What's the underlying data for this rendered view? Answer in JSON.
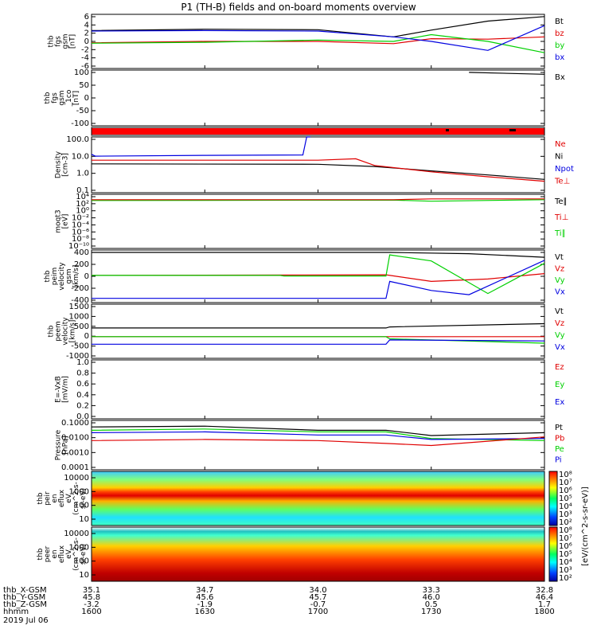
{
  "title": "P1 (TH-B) fields and on-board moments overview",
  "colors": {
    "black": "#000000",
    "red": "#e00000",
    "green": "#00d000",
    "blue": "#0000e0"
  },
  "chart_data": [
    {
      "id": "fgs",
      "type": "line",
      "ylabel_lines": [
        "thb",
        "fgs",
        "gsm",
        "[nT]"
      ],
      "yticks": [
        "6",
        "4",
        "2",
        "0",
        "-2",
        "-4",
        "-6"
      ],
      "ylim": [
        -6,
        6
      ],
      "legend": [
        {
          "label": "Bt",
          "color": "black"
        },
        {
          "label": "bz",
          "color": "red"
        },
        {
          "label": "by",
          "color": "green"
        },
        {
          "label": "bx",
          "color": "blue"
        }
      ],
      "series": [
        {
          "name": "Bt",
          "color": "black",
          "x": [
            1600,
            1630,
            1700,
            1720,
            1730,
            1745,
            1800
          ],
          "y": [
            2.4,
            2.7,
            2.6,
            1.0,
            2.5,
            4.5,
            5.5
          ]
        },
        {
          "name": "bz",
          "color": "red",
          "x": [
            1600,
            1630,
            1700,
            1720,
            1730,
            1745,
            1800
          ],
          "y": [
            -0.3,
            0.0,
            0.0,
            -0.5,
            0.6,
            0.5,
            1.0
          ]
        },
        {
          "name": "by",
          "color": "green",
          "x": [
            1600,
            1630,
            1700,
            1720,
            1730,
            1745,
            1800
          ],
          "y": [
            -0.4,
            -0.2,
            0.3,
            0.0,
            1.5,
            0.0,
            -2.5
          ]
        },
        {
          "name": "bx",
          "color": "blue",
          "x": [
            1600,
            1630,
            1700,
            1720,
            1730,
            1745,
            1800
          ],
          "y": [
            2.3,
            2.4,
            2.3,
            1.0,
            0.0,
            -2.0,
            3.5
          ]
        }
      ]
    },
    {
      "id": "fgs_bx",
      "type": "line",
      "ylabel_lines": [
        "thb",
        "fgs",
        "gsm",
        "_1co",
        "[nT]"
      ],
      "yticks": [
        "100",
        "50",
        "0",
        "-50",
        "-100"
      ],
      "ylim": [
        -130,
        110
      ],
      "legend": [
        {
          "label": "Bx",
          "color": "black"
        }
      ],
      "series": [
        {
          "name": "Bx",
          "color": "black",
          "x": [
            1740,
            1800
          ],
          "y": [
            100,
            92
          ]
        }
      ]
    },
    {
      "id": "flag",
      "type": "bar",
      "ylabel_lines": [],
      "yticks": [],
      "legend": []
    },
    {
      "id": "density",
      "type": "line",
      "log": true,
      "ylabel_lines": [
        "Density",
        "[cm-3]"
      ],
      "yticks": [
        "100.0",
        "10.0",
        "1.0",
        "0.1"
      ],
      "ylim": [
        0.05,
        300
      ],
      "legend": [
        {
          "label": "Ne",
          "color": "red"
        },
        {
          "label": "Ni",
          "color": "black"
        },
        {
          "label": "Npot",
          "color": "blue"
        },
        {
          "label": "Te⊥",
          "color": "red"
        }
      ],
      "series": [
        {
          "name": "Npot",
          "color": "blue",
          "x": [
            1600,
            1601,
            1630,
            1656,
            1657,
            1658
          ],
          "y": [
            20,
            15,
            17,
            18,
            300,
            300
          ]
        },
        {
          "name": "Ni",
          "color": "black",
          "x": [
            1600,
            1700,
            1715,
            1730,
            1745,
            1800
          ],
          "y": [
            4.5,
            4.2,
            3.0,
            1.5,
            0.8,
            0.4
          ]
        },
        {
          "name": "Ne",
          "color": "red",
          "x": [
            1600,
            1700,
            1710,
            1715,
            1730,
            1745,
            1800
          ],
          "y": [
            8,
            8,
            10,
            3.5,
            1.3,
            0.6,
            0.3
          ]
        }
      ]
    },
    {
      "id": "moqt3",
      "type": "line",
      "log": true,
      "ylabel_lines": [
        "moqt3",
        "[eV]"
      ],
      "yticks": [
        "10⁴",
        "10²",
        "10⁰",
        "10⁻²",
        "10⁻⁴",
        "10⁻⁶",
        "10⁻⁸",
        "10⁻¹⁰"
      ],
      "ylim": [
        -10,
        4
      ],
      "legend": [
        {
          "label": "Te∥",
          "color": "black"
        },
        {
          "label": "Ti⊥",
          "color": "red"
        },
        {
          "label": "Ti∥",
          "color": "green"
        }
      ],
      "series": [
        {
          "name": "Ti∥",
          "color": "green",
          "x": [
            1600,
            1720,
            1730,
            1800
          ],
          "y": [
            2.4,
            2.5,
            2.2,
            2.6
          ]
        },
        {
          "name": "Ti⊥",
          "color": "red",
          "x": [
            1600,
            1720,
            1730,
            1800
          ],
          "y": [
            2.6,
            2.6,
            2.8,
            2.8
          ]
        }
      ]
    },
    {
      "id": "peim",
      "type": "line",
      "ylabel_lines": [
        "thb",
        "peim",
        "velocity",
        "gsm",
        "[km/s]"
      ],
      "yticks": [
        "400",
        "200",
        "0",
        "-200",
        "-400"
      ],
      "ylim": [
        -450,
        420
      ],
      "legend": [
        {
          "label": "Vt",
          "color": "black"
        },
        {
          "label": "Vz",
          "color": "red"
        },
        {
          "label": "Vy",
          "color": "green"
        },
        {
          "label": "Vx",
          "color": "blue"
        }
      ],
      "series": [
        {
          "name": "Vt",
          "color": "black",
          "x": [
            1600,
            1700,
            1718,
            1719,
            1740,
            1800
          ],
          "y": [
            380,
            380,
            380,
            380,
            360,
            300
          ]
        },
        {
          "name": "Vz",
          "color": "red",
          "x": [
            1600,
            1718,
            1730,
            1745,
            1800
          ],
          "y": [
            0,
            10,
            -100,
            -60,
            30
          ]
        },
        {
          "name": "Vy",
          "color": "green",
          "x": [
            1600,
            1650,
            1651,
            1718,
            1719,
            1730,
            1745,
            1800
          ],
          "y": [
            0,
            0,
            -10,
            -10,
            340,
            240,
            -300,
            200
          ]
        },
        {
          "name": "Vx",
          "color": "blue",
          "x": [
            1600,
            1700,
            1718,
            1719,
            1730,
            1740,
            1800
          ],
          "y": [
            -380,
            -380,
            -380,
            -100,
            -250,
            -320,
            250
          ]
        }
      ]
    },
    {
      "id": "peem",
      "type": "line",
      "ylabel_lines": [
        "thb",
        "peem",
        "velocity",
        "[km/s]"
      ],
      "yticks": [
        "1500",
        "1000",
        "500",
        "0",
        "-500",
        "-1000"
      ],
      "ylim": [
        -1000,
        1500
      ],
      "legend": [
        {
          "label": "Vt",
          "color": "black"
        },
        {
          "label": "Vz",
          "color": "red"
        },
        {
          "label": "Vy",
          "color": "green"
        },
        {
          "label": "Vx",
          "color": "blue"
        }
      ],
      "series": [
        {
          "name": "Vt",
          "color": "black",
          "x": [
            1600,
            1718,
            1719,
            1800
          ],
          "y": [
            400,
            400,
            450,
            600
          ]
        },
        {
          "name": "Vz",
          "color": "red",
          "x": [
            1600,
            1800
          ],
          "y": [
            0,
            0
          ]
        },
        {
          "name": "Vy",
          "color": "green",
          "x": [
            1600,
            1718,
            1719,
            1800
          ],
          "y": [
            0,
            0,
            -100,
            -300
          ]
        },
        {
          "name": "Vx",
          "color": "blue",
          "x": [
            1600,
            1718,
            1719,
            1800
          ],
          "y": [
            -350,
            -350,
            -150,
            -200
          ]
        }
      ]
    },
    {
      "id": "efield",
      "type": "line",
      "ylabel_lines": [
        "E=-VxB",
        "[mV/m]"
      ],
      "yticks": [
        "1.0",
        "0.8",
        "0.6",
        "0.4",
        "0.2",
        "0.0"
      ],
      "ylim": [
        0,
        1
      ],
      "legend": [
        {
          "label": "Ez",
          "color": "red"
        },
        {
          "label": "Ey",
          "color": "green"
        },
        {
          "label": "Ex",
          "color": "blue"
        }
      ],
      "series": []
    },
    {
      "id": "pressure",
      "type": "line",
      "log": true,
      "ylabel_lines": [
        "Pressure",
        "[nPa]"
      ],
      "yticks": [
        "0.1000",
        "0.0100",
        "0.0010",
        "0.0001"
      ],
      "ylim": [
        -4,
        -1
      ],
      "legend": [
        {
          "label": "Pt",
          "color": "black"
        },
        {
          "label": "Pb",
          "color": "red"
        },
        {
          "label": "Pe",
          "color": "green"
        },
        {
          "label": "Pi",
          "color": "blue"
        }
      ],
      "series": [
        {
          "name": "Pt",
          "color": "black",
          "x": [
            1600,
            1630,
            1700,
            1718,
            1730,
            1800
          ],
          "y": [
            0.04,
            0.045,
            0.025,
            0.025,
            0.012,
            0.018
          ]
        },
        {
          "name": "Pe",
          "color": "green",
          "x": [
            1600,
            1630,
            1700,
            1718,
            1730,
            1800
          ],
          "y": [
            0.025,
            0.03,
            0.02,
            0.02,
            0.008,
            0.006
          ]
        },
        {
          "name": "Pi",
          "color": "blue",
          "x": [
            1600,
            1630,
            1700,
            1718,
            1730,
            1800
          ],
          "y": [
            0.018,
            0.02,
            0.013,
            0.013,
            0.007,
            0.008
          ]
        },
        {
          "name": "Pb",
          "color": "red",
          "x": [
            1600,
            1630,
            1700,
            1718,
            1730,
            1800
          ],
          "y": [
            0.006,
            0.007,
            0.006,
            0.004,
            0.003,
            0.01
          ]
        }
      ]
    },
    {
      "id": "peir",
      "type": "heatmap",
      "ylabel_lines": [
        "thb",
        "peir",
        "en",
        "eflux",
        "eV",
        "(cm^2-s-",
        "sr-eV)"
      ],
      "yticks": [
        "10000",
        "1000",
        "100",
        "10"
      ],
      "ylim": [
        5,
        20000
      ]
    },
    {
      "id": "peer",
      "type": "heatmap",
      "ylabel_lines": [
        "thb",
        "peer",
        "en",
        "eflux",
        "eV",
        "(cm^2-s-",
        "sr-eV)"
      ],
      "yticks": [
        "10000",
        "1000",
        "100",
        "10"
      ],
      "ylim": [
        5,
        20000
      ]
    }
  ],
  "colorbar": {
    "ticks_top": [
      "10⁸",
      "10⁷",
      "10⁶",
      "10⁵",
      "10⁴",
      "10³",
      "10²"
    ],
    "ticks_bottom": [
      "10⁸",
      "10⁷",
      "10⁶",
      "10⁵",
      "10⁴",
      "10³",
      "10²"
    ],
    "label": "[eV/(cm^2-s-sr-eV)]"
  },
  "footer": {
    "rows": [
      {
        "label": "thb_X-GSM",
        "values": [
          "35.1",
          "34.7",
          "34.0",
          "33.3",
          "32.8"
        ]
      },
      {
        "label": "thb_Y-GSM",
        "values": [
          "45.8",
          "45.6",
          "45.7",
          "46.0",
          "46.4"
        ]
      },
      {
        "label": "thb_Z-GSM",
        "values": [
          "-3.2",
          "-1.9",
          "-0.7",
          "0.5",
          "1.7"
        ]
      },
      {
        "label": "hhmm",
        "values": [
          "1600",
          "1630",
          "1700",
          "1730",
          "1800"
        ]
      }
    ],
    "date": "2019 Jul 06"
  }
}
